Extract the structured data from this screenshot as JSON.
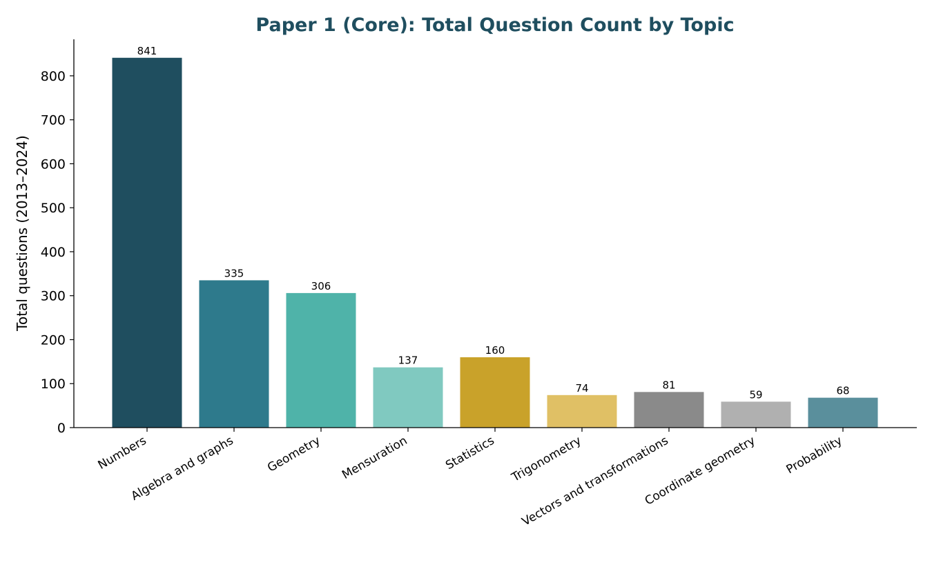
{
  "chart_data": {
    "type": "bar",
    "title": "Paper 1 (Core): Total Question Count by Topic",
    "title_color": "#1f4e5f",
    "xlabel": "",
    "ylabel": "Total questions (2013–2024)",
    "ylim": [
      0,
      883
    ],
    "yticks": [
      0,
      100,
      200,
      300,
      400,
      500,
      600,
      700,
      800
    ],
    "grid": false,
    "categories": [
      "Numbers",
      "Algebra and graphs",
      "Geometry",
      "Mensuration",
      "Statistics",
      "Trigonometry",
      "Vectors and transformations",
      "Coordinate geometry",
      "Probability"
    ],
    "values": [
      841,
      335,
      306,
      137,
      160,
      74,
      81,
      59,
      68
    ],
    "colors": [
      "#1f4e5f",
      "#2e7a8c",
      "#4fb3a9",
      "#80c9c0",
      "#c9a22a",
      "#e0c065",
      "#8a8a8a",
      "#b0b0b0",
      "#5a8f9c"
    ]
  }
}
